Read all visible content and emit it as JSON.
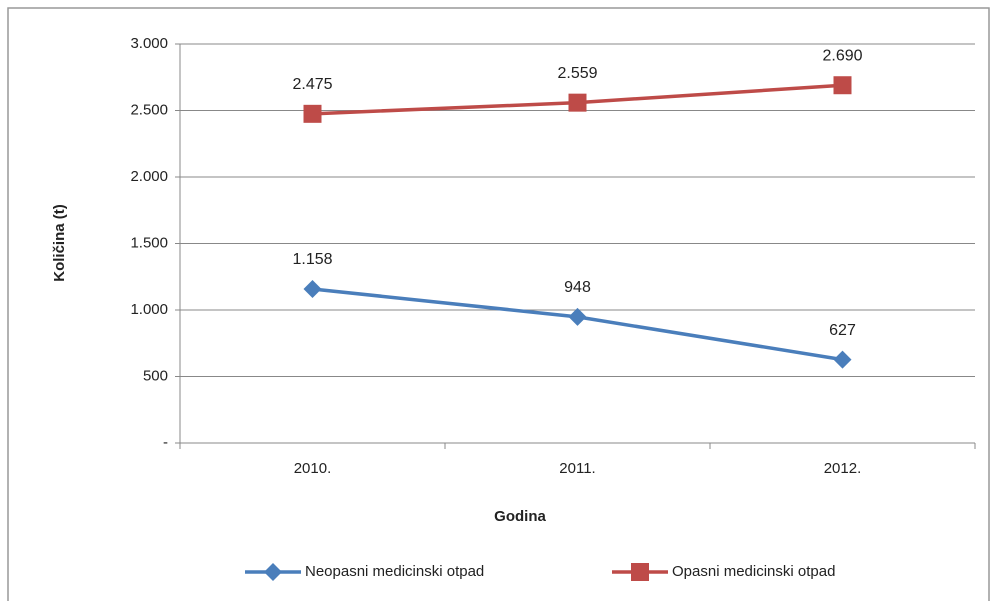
{
  "chart_data": {
    "type": "line",
    "categories": [
      "2010.",
      "2011.",
      "2012."
    ],
    "series": [
      {
        "name": "Neopasni medicinski otpad",
        "color": "#4a7ebb",
        "marker": "diamond",
        "values": [
          1158,
          948,
          627
        ],
        "value_labels": [
          "1.158",
          "948",
          "627"
        ]
      },
      {
        "name": "Opasni medicinski otpad",
        "color": "#be4b48",
        "marker": "square",
        "values": [
          2475,
          2559,
          2690
        ],
        "value_labels": [
          "2.475",
          "2.559",
          "2.690"
        ]
      }
    ],
    "ylabel": "Količina (t)",
    "xlabel": "Godina",
    "ylim": [
      0,
      3000
    ],
    "yticks": [
      {
        "value": 0,
        "label": "-"
      },
      500,
      {
        "value": 1000,
        "label": "1.000"
      },
      {
        "value": 1500,
        "label": "1.500"
      },
      {
        "value": 2000,
        "label": "2.000"
      },
      {
        "value": 2500,
        "label": "2.500"
      },
      {
        "value": 3000,
        "label": "3.000"
      }
    ],
    "grid": true,
    "legend": "bottom"
  }
}
